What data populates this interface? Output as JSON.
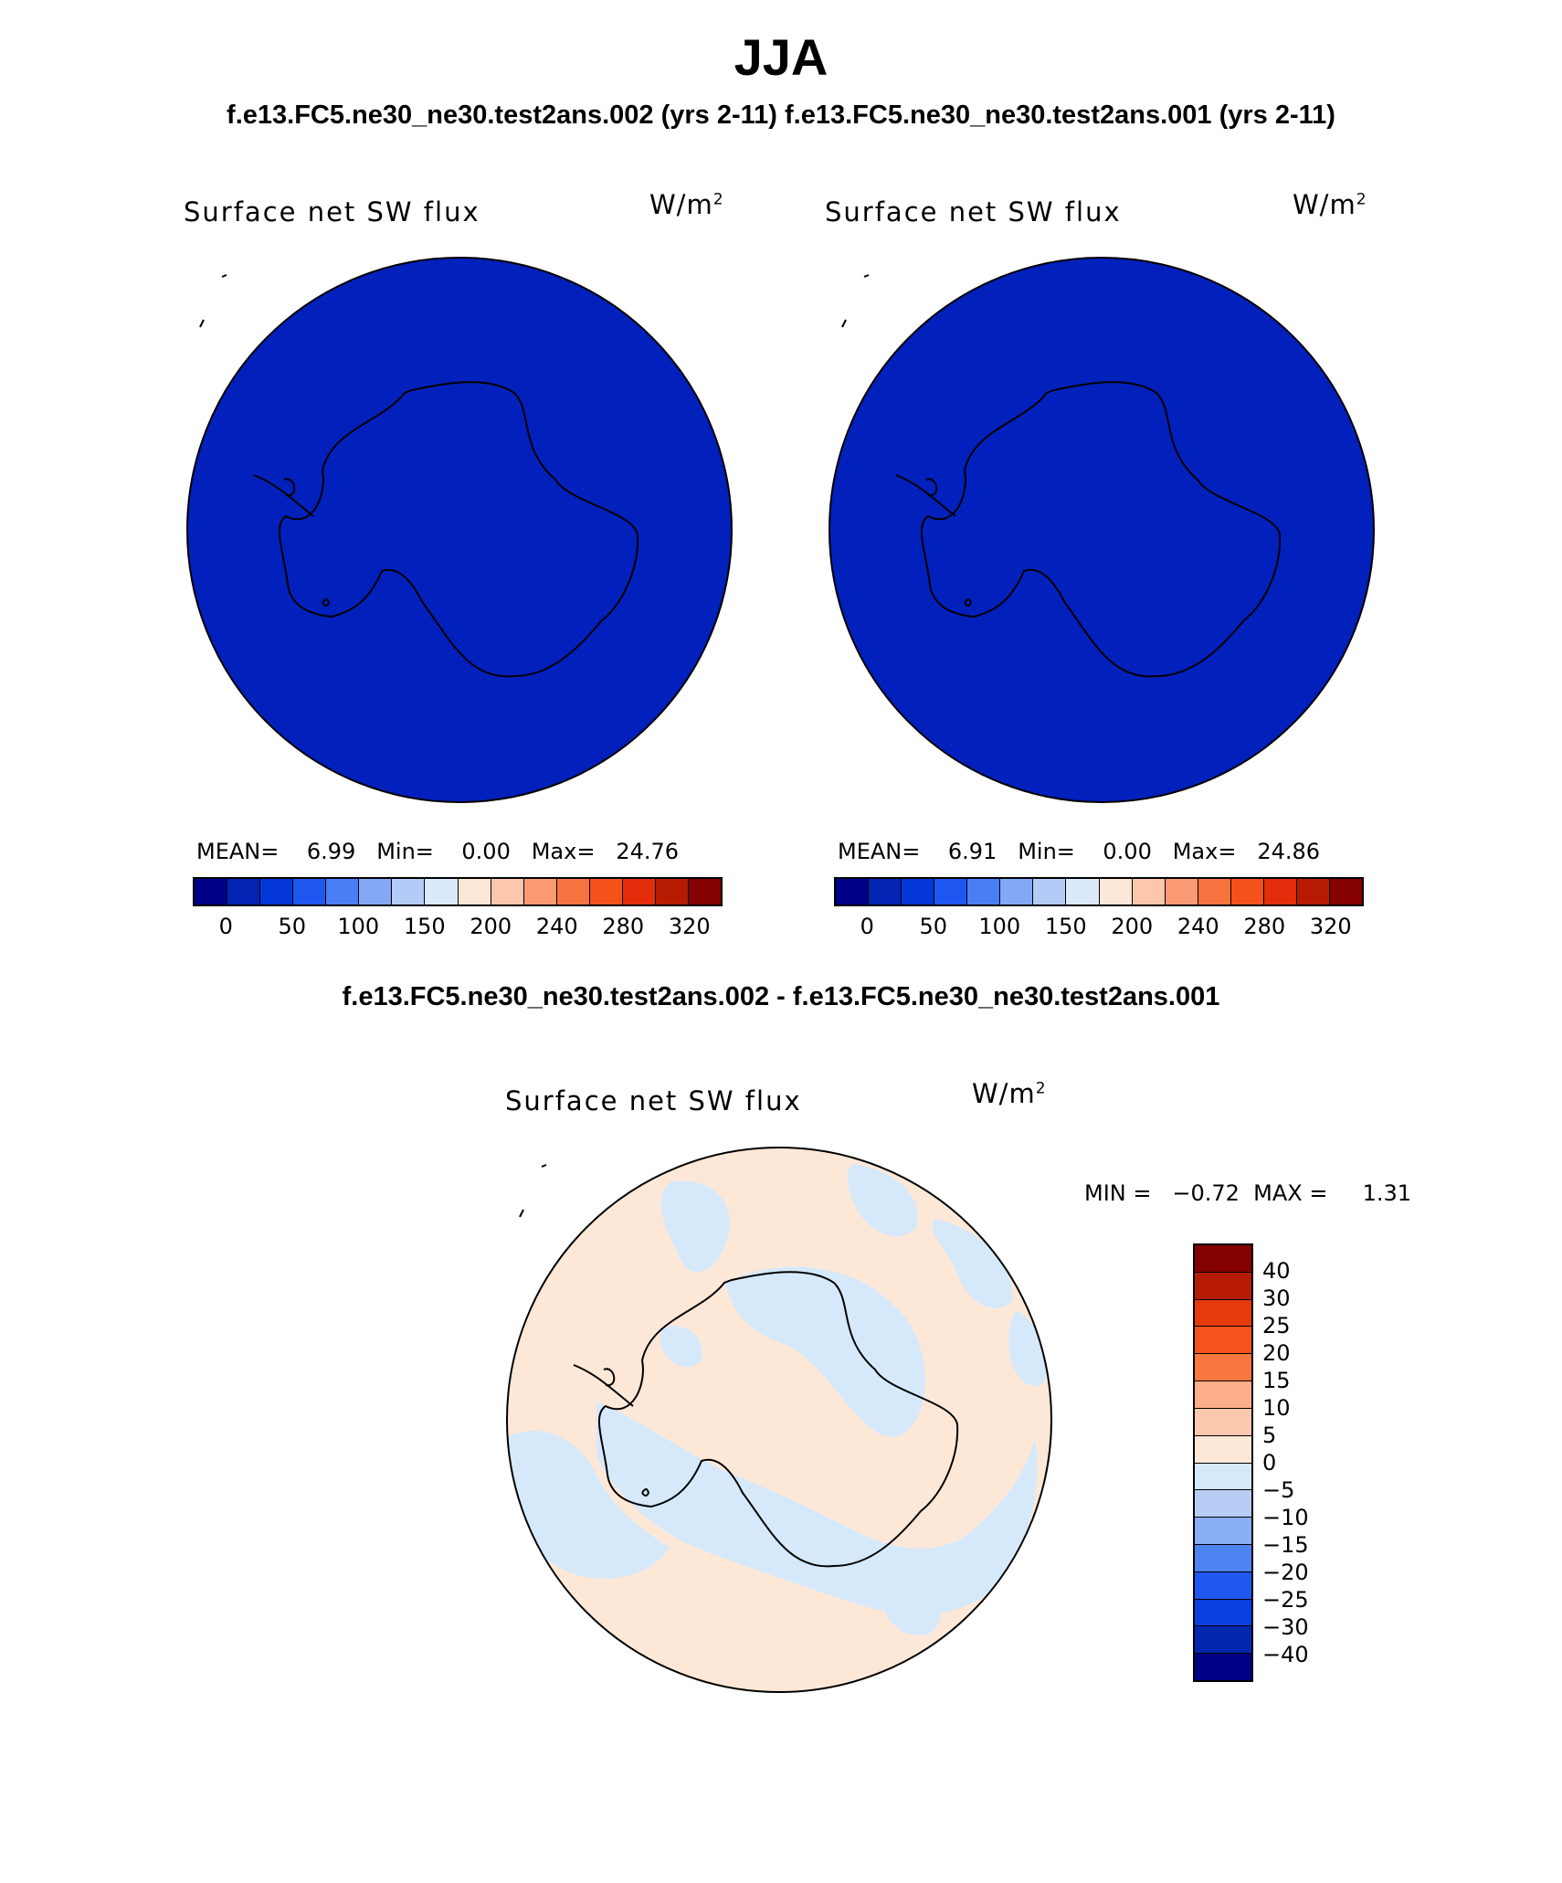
{
  "title": "JJA",
  "subtitle": "f.e13.FC5.ne30_ne30.test2ans.002 (yrs 2-11) f.e13.FC5.ne30_ne30.test2ans.001 (yrs 2-11)",
  "diff_title": "f.e13.FC5.ne30_ne30.test2ans.002 - f.e13.FC5.ne30_ne30.test2ans.001",
  "panels": [
    {
      "variable": "Surface net SW flux",
      "units_base": "W/m",
      "units_exp": "2",
      "stats": "MEAN=    6.99   Min=    0.00   Max=   24.76",
      "fill_color": "#0220bc"
    },
    {
      "variable": "Surface net SW flux",
      "units_base": "W/m",
      "units_exp": "2",
      "stats": "MEAN=    6.91   Min=    0.00   Max=   24.86",
      "fill_color": "#0220bc"
    }
  ],
  "diff_panel": {
    "variable": "Surface net SW flux",
    "units_base": "W/m",
    "units_exp": "2",
    "stats": "MIN =   −0.72  MAX =     1.31",
    "positive_color": "#fde8d8",
    "negative_color": "#d6e9fb"
  },
  "colorbar_horizontal": {
    "colors": [
      "#000087",
      "#0323b3",
      "#0437d8",
      "#1e58f0",
      "#4a7ef4",
      "#83a8f6",
      "#b4cbf8",
      "#dbe9fb",
      "#fde8d8",
      "#fcc7ad",
      "#f99a74",
      "#f5743f",
      "#f3521b",
      "#e42d0a",
      "#b71c03",
      "#850000"
    ],
    "labels": [
      "0",
      "50",
      "100",
      "150",
      "200",
      "240",
      "280",
      "320"
    ]
  },
  "colorbar_vertical": {
    "colors": [
      "#850000",
      "#b71c03",
      "#e53a0c",
      "#f5541c",
      "#f8783f",
      "#fcae8a",
      "#fcc9ae",
      "#fde8d8",
      "#d6e9fb",
      "#b7cdf6",
      "#8aaef4",
      "#4f83f2",
      "#1f58f0",
      "#0a3fe0",
      "#0427b0",
      "#000087"
    ],
    "labels": [
      "40",
      "30",
      "25",
      "20",
      "15",
      "10",
      "5",
      "0",
      "−5",
      "−10",
      "−15",
      "−20",
      "−25",
      "−30",
      "−40"
    ]
  }
}
